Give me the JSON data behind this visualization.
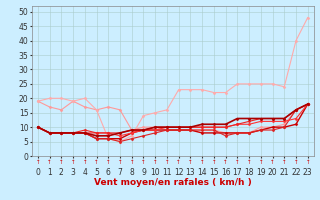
{
  "xlabel": "Vent moyen/en rafales ( km/h )",
  "xlim": [
    -0.5,
    23.5
  ],
  "ylim": [
    0,
    52
  ],
  "yticks": [
    0,
    5,
    10,
    15,
    20,
    25,
    30,
    35,
    40,
    45,
    50
  ],
  "xticks": [
    0,
    1,
    2,
    3,
    4,
    5,
    6,
    7,
    8,
    9,
    10,
    11,
    12,
    13,
    14,
    15,
    16,
    17,
    18,
    19,
    20,
    21,
    22,
    23
  ],
  "bg_color": "#cceeff",
  "grid_color": "#aacccc",
  "series": [
    {
      "x": [
        0,
        1,
        2,
        3,
        4,
        5,
        6,
        7,
        8,
        9,
        10,
        11,
        12,
        13,
        14,
        15,
        16,
        17,
        18,
        19,
        20,
        21,
        22,
        23
      ],
      "y": [
        19,
        17,
        16,
        19,
        17,
        16,
        17,
        16,
        9,
        10,
        10,
        9,
        9,
        9,
        9,
        9,
        8,
        8,
        8,
        10,
        10,
        11,
        16,
        18
      ],
      "color": "#ff9999",
      "lw": 0.8,
      "marker": "D",
      "ms": 1.5
    },
    {
      "x": [
        0,
        1,
        2,
        3,
        4,
        5,
        6,
        7,
        8,
        9,
        10,
        11,
        12,
        13,
        14,
        15,
        16,
        17,
        18,
        19,
        20,
        21,
        22,
        23
      ],
      "y": [
        19,
        20,
        20,
        19,
        20,
        16,
        6,
        5,
        7,
        14,
        15,
        16,
        23,
        23,
        23,
        22,
        22,
        25,
        25,
        25,
        25,
        24,
        40,
        48
      ],
      "color": "#ffaaaa",
      "lw": 0.8,
      "marker": "D",
      "ms": 1.5
    },
    {
      "x": [
        0,
        1,
        2,
        3,
        4,
        5,
        6,
        7,
        8,
        9,
        10,
        11,
        12,
        13,
        14,
        15,
        16,
        17,
        18,
        19,
        20,
        21,
        22,
        23
      ],
      "y": [
        10,
        8,
        8,
        8,
        8,
        6,
        6,
        6,
        8,
        9,
        9,
        9,
        9,
        9,
        8,
        8,
        8,
        8,
        8,
        9,
        10,
        10,
        11,
        18
      ],
      "color": "#cc0000",
      "lw": 1.0,
      "marker": "D",
      "ms": 1.5
    },
    {
      "x": [
        0,
        1,
        2,
        3,
        4,
        5,
        6,
        7,
        8,
        9,
        10,
        11,
        12,
        13,
        14,
        15,
        16,
        17,
        18,
        19,
        20,
        21,
        22,
        23
      ],
      "y": [
        10,
        8,
        8,
        8,
        8,
        6,
        6,
        5,
        6,
        7,
        8,
        9,
        9,
        9,
        9,
        9,
        7,
        8,
        8,
        9,
        9,
        10,
        16,
        18
      ],
      "color": "#dd2222",
      "lw": 0.8,
      "marker": "D",
      "ms": 1.5
    },
    {
      "x": [
        0,
        1,
        2,
        3,
        4,
        5,
        6,
        7,
        8,
        9,
        10,
        11,
        12,
        13,
        14,
        15,
        16,
        17,
        18,
        19,
        20,
        21,
        22,
        23
      ],
      "y": [
        10,
        8,
        8,
        8,
        8,
        8,
        8,
        7,
        8,
        9,
        9,
        10,
        10,
        10,
        10,
        10,
        10,
        11,
        11,
        12,
        12,
        12,
        13,
        18
      ],
      "color": "#ff3333",
      "lw": 0.8,
      "marker": "D",
      "ms": 1.5
    },
    {
      "x": [
        0,
        1,
        2,
        3,
        4,
        5,
        6,
        7,
        8,
        9,
        10,
        11,
        12,
        13,
        14,
        15,
        16,
        17,
        18,
        19,
        20,
        21,
        22,
        23
      ],
      "y": [
        10,
        8,
        8,
        8,
        9,
        8,
        8,
        8,
        9,
        9,
        10,
        10,
        10,
        10,
        10,
        10,
        10,
        11,
        12,
        13,
        13,
        13,
        16,
        18
      ],
      "color": "#ee2222",
      "lw": 0.8,
      "marker": "D",
      "ms": 1.5
    },
    {
      "x": [
        0,
        1,
        2,
        3,
        4,
        5,
        6,
        7,
        8,
        9,
        10,
        11,
        12,
        13,
        14,
        15,
        16,
        17,
        18,
        19,
        20,
        21,
        22,
        23
      ],
      "y": [
        10,
        8,
        8,
        8,
        8,
        7,
        7,
        8,
        9,
        9,
        10,
        10,
        10,
        10,
        11,
        11,
        11,
        13,
        13,
        13,
        13,
        13,
        16,
        18
      ],
      "color": "#aa0000",
      "lw": 1.2,
      "marker": "D",
      "ms": 1.5
    }
  ],
  "arrow_color": "#cc0000",
  "xlabel_fontsize": 6.5,
  "tick_fontsize": 5.5
}
